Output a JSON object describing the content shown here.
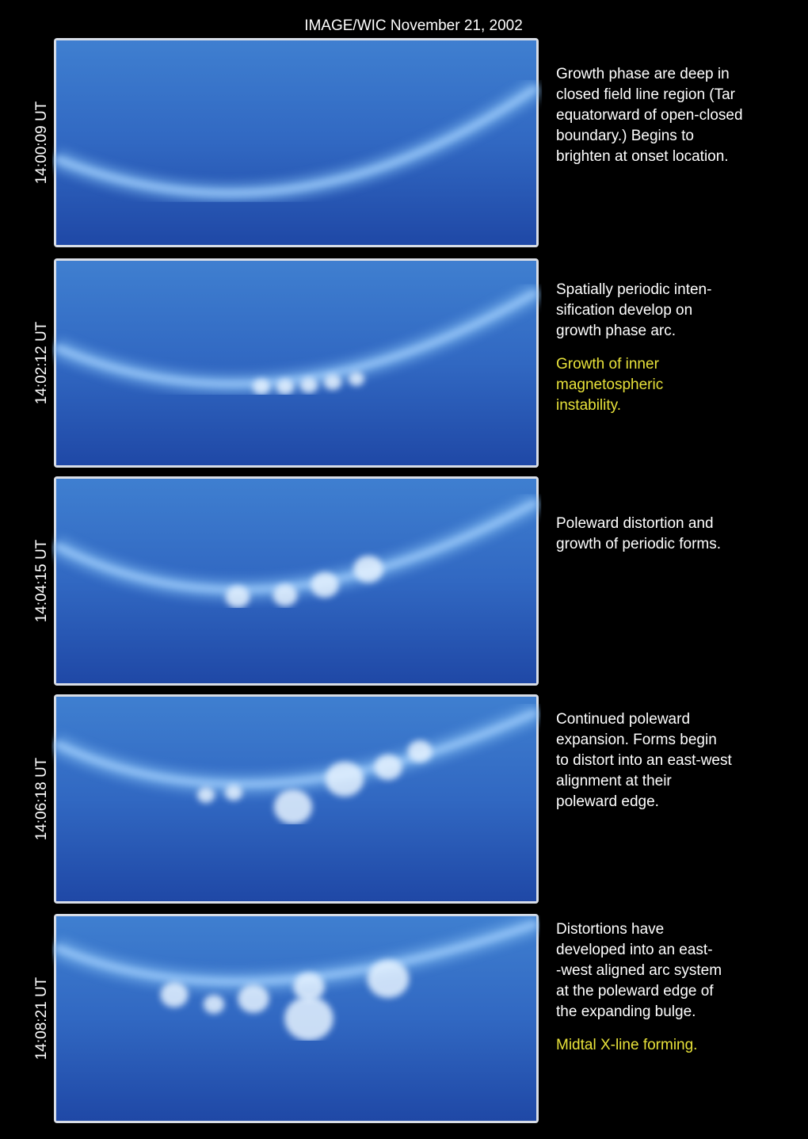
{
  "title": "IMAGE/WIC November 21, 2002",
  "panels": [
    {
      "time": "14:00:09 UT",
      "description": [
        "Growth phase are deep in",
        "closed field line region (Tar",
        "equatorward of open-closed",
        "boundary.) Begins to",
        "brighten at onset location."
      ]
    },
    {
      "time": "14:02:12 UT",
      "description": [
        "Spatially periodic inten-",
        "sification develop on",
        "growth phase arc."
      ],
      "note": [
        "Growth of inner",
        "magnetospheric",
        "instability."
      ]
    },
    {
      "time": "14:04:15 UT",
      "description": [
        "Poleward distortion and",
        "growth of periodic forms."
      ]
    },
    {
      "time": "14:06:18 UT",
      "description": [
        "Continued poleward",
        "expansion. Forms begin",
        "to distort into an east-west",
        "alignment at their",
        "poleward edge."
      ]
    },
    {
      "time": "14:08:21 UT",
      "description": [
        "Distortions have",
        "developed into an east-",
        "-west aligned arc system",
        "at the poleward edge of",
        "the expanding bulge."
      ],
      "note": [
        "Midtal X-line forming."
      ]
    }
  ]
}
